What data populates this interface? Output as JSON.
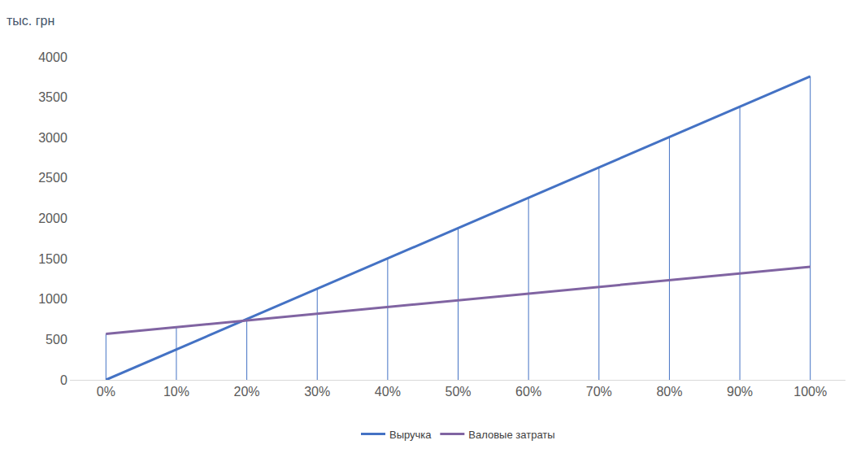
{
  "chart_data": {
    "type": "line",
    "y_label": "тыс. грн",
    "categories": [
      "0%",
      "10%",
      "20%",
      "30%",
      "40%",
      "50%",
      "60%",
      "70%",
      "80%",
      "90%",
      "100%"
    ],
    "series": [
      {
        "name": "Выручка",
        "color": "#4472c4",
        "values": [
          0,
          376,
          752,
          1128,
          1504,
          1880,
          2256,
          2632,
          3008,
          3384,
          3760
        ]
      },
      {
        "name": "Валовые затраты",
        "color": "#8064a2",
        "values": [
          570,
          653,
          736,
          819,
          902,
          985,
          1068,
          1151,
          1234,
          1317,
          1400
        ]
      }
    ],
    "ylim": [
      0,
      4000
    ],
    "yticks": [
      0,
      500,
      1000,
      1500,
      2000,
      2500,
      3000,
      3500,
      4000
    ],
    "grid": false,
    "legend": "bottom"
  }
}
